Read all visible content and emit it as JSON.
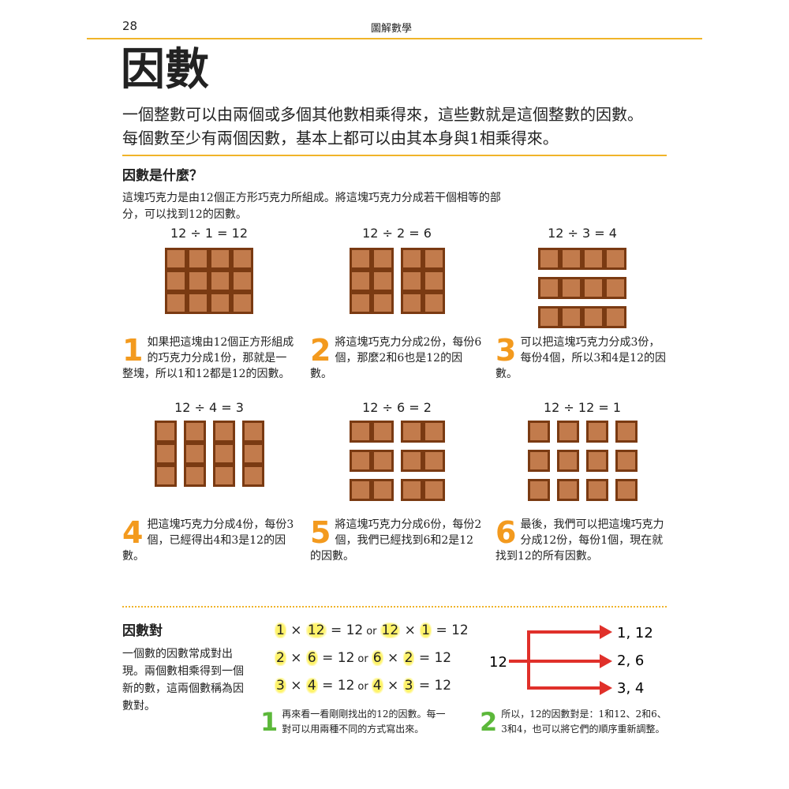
{
  "header": {
    "page_number": "28",
    "book_title": "圖解數學"
  },
  "title": "因數",
  "intro": [
    "一個整數可以由兩個或多個其他數相乘得來，這些數就是這個整數的因數。",
    "每個數至少有兩個因數，基本上都可以由其本身與1相乘得來。"
  ],
  "section1": {
    "heading": "因數是什麼？",
    "text": "這塊巧克力是由12個正方形巧克力所組成。將這塊巧克力分成若干個相等的部分，可以找到12的因數。",
    "panels": [
      {
        "equation": "12 ÷ 1 = 12",
        "number": "1",
        "caption": "如果把這塊由12個正方形組成的巧克力分成1份，那就是一整塊，所以1和12都是12的因數。",
        "parts": 1
      },
      {
        "equation": "12 ÷ 2 = 6",
        "number": "2",
        "caption": "將這塊巧克力分成2份，每份6個，那麼2和6也是12的因數。",
        "parts": 2
      },
      {
        "equation": "12 ÷ 3 = 4",
        "number": "3",
        "caption": "可以把這塊巧克力分成3份，每份4個，所以3和4是12的因數。",
        "parts": 3
      },
      {
        "equation": "12 ÷ 4 = 3",
        "number": "4",
        "caption": "把這塊巧克力分成4份，每份3個，已經得出4和3是12的因數。",
        "parts": 4
      },
      {
        "equation": "12 ÷ 6 = 2",
        "number": "5",
        "caption": "將這塊巧克力分成6份，每份2個，我們已經找到6和2是12的因數。",
        "parts": 6
      },
      {
        "equation": "12 ÷ 12 = 1",
        "number": "6",
        "caption": "最後，我們可以把這塊巧克力分成12份，每份1個，現在就找到12的所有因數。",
        "parts": 12
      }
    ]
  },
  "section2": {
    "heading": "因數對",
    "text": "一個數的因數常成對出現。兩個數相乘得到一個新的數，這兩個數稱為因數對。",
    "pairs": [
      {
        "a": "1",
        "b": "12"
      },
      {
        "a": "2",
        "b": "6"
      },
      {
        "a": "3",
        "b": "4"
      }
    ],
    "times": "×",
    "equals": "= 12",
    "or": "or",
    "step1": {
      "number": "1",
      "text": "再來看一看剛剛找出的12的因數。每一對可以用兩種不同的方式寫出來。"
    },
    "diagram": {
      "source": "12",
      "targets": [
        "1, 12",
        "2, 6",
        "3, 4"
      ]
    },
    "step2": {
      "number": "2",
      "text": "所以，12的因數對是：1和12、2和6、3和4，也可以將它們的順序重新調整。"
    }
  },
  "colors": {
    "accent": "#f0b429",
    "number_orange": "#f39a1e",
    "chocolate": "#c27b4c",
    "chocolate_dark": "#7a3a12",
    "arrow_red": "#e0302a",
    "step_green": "#5cb83a",
    "highlight": "#fff36a"
  }
}
